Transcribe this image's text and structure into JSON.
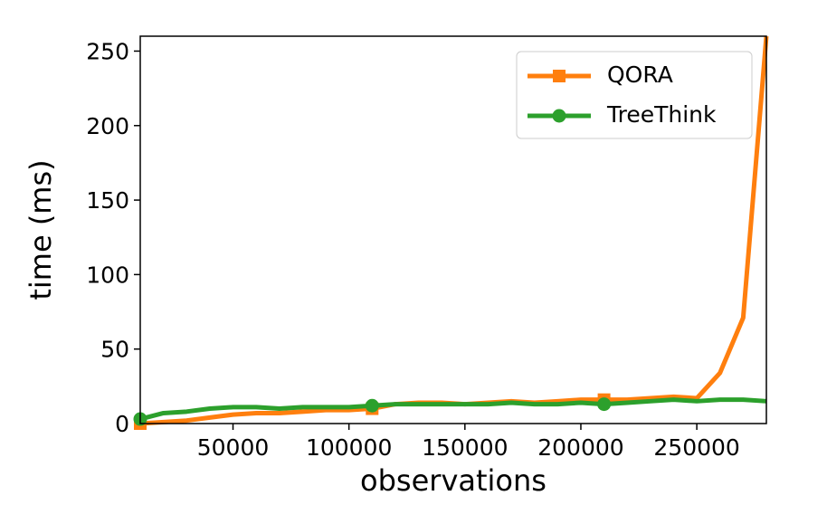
{
  "chart_data": {
    "type": "line",
    "x_label": "observations",
    "y_label": "time (ms)",
    "x": [
      10000,
      20000,
      30000,
      40000,
      50000,
      60000,
      70000,
      80000,
      90000,
      100000,
      110000,
      120000,
      130000,
      140000,
      150000,
      160000,
      170000,
      180000,
      190000,
      200000,
      210000,
      220000,
      230000,
      240000,
      250000,
      260000,
      270000,
      280000
    ],
    "series": [
      {
        "name": "QORA",
        "color": "#ff7f0e",
        "marker": "square",
        "values": [
          0,
          1,
          2,
          4,
          6,
          7,
          7,
          8,
          9,
          9,
          10,
          13,
          14,
          14,
          13,
          14,
          15,
          14,
          15,
          16,
          16,
          16,
          17,
          18,
          17,
          34,
          71,
          260
        ]
      },
      {
        "name": "TreeThink",
        "color": "#2ca02c",
        "marker": "circle",
        "values": [
          3,
          7,
          8,
          10,
          11,
          11,
          10,
          11,
          11,
          11,
          12,
          13,
          13,
          13,
          13,
          13,
          14,
          13,
          13,
          14,
          13,
          14,
          15,
          16,
          15,
          16,
          16,
          15
        ]
      }
    ],
    "markevery": 10,
    "xlim": [
      10000,
      280000
    ],
    "xticks": [
      50000,
      100000,
      150000,
      200000,
      250000
    ],
    "ylim": [
      0,
      260
    ],
    "yticks": [
      0,
      50,
      100,
      150,
      200,
      250
    ],
    "legend": "upper right"
  }
}
